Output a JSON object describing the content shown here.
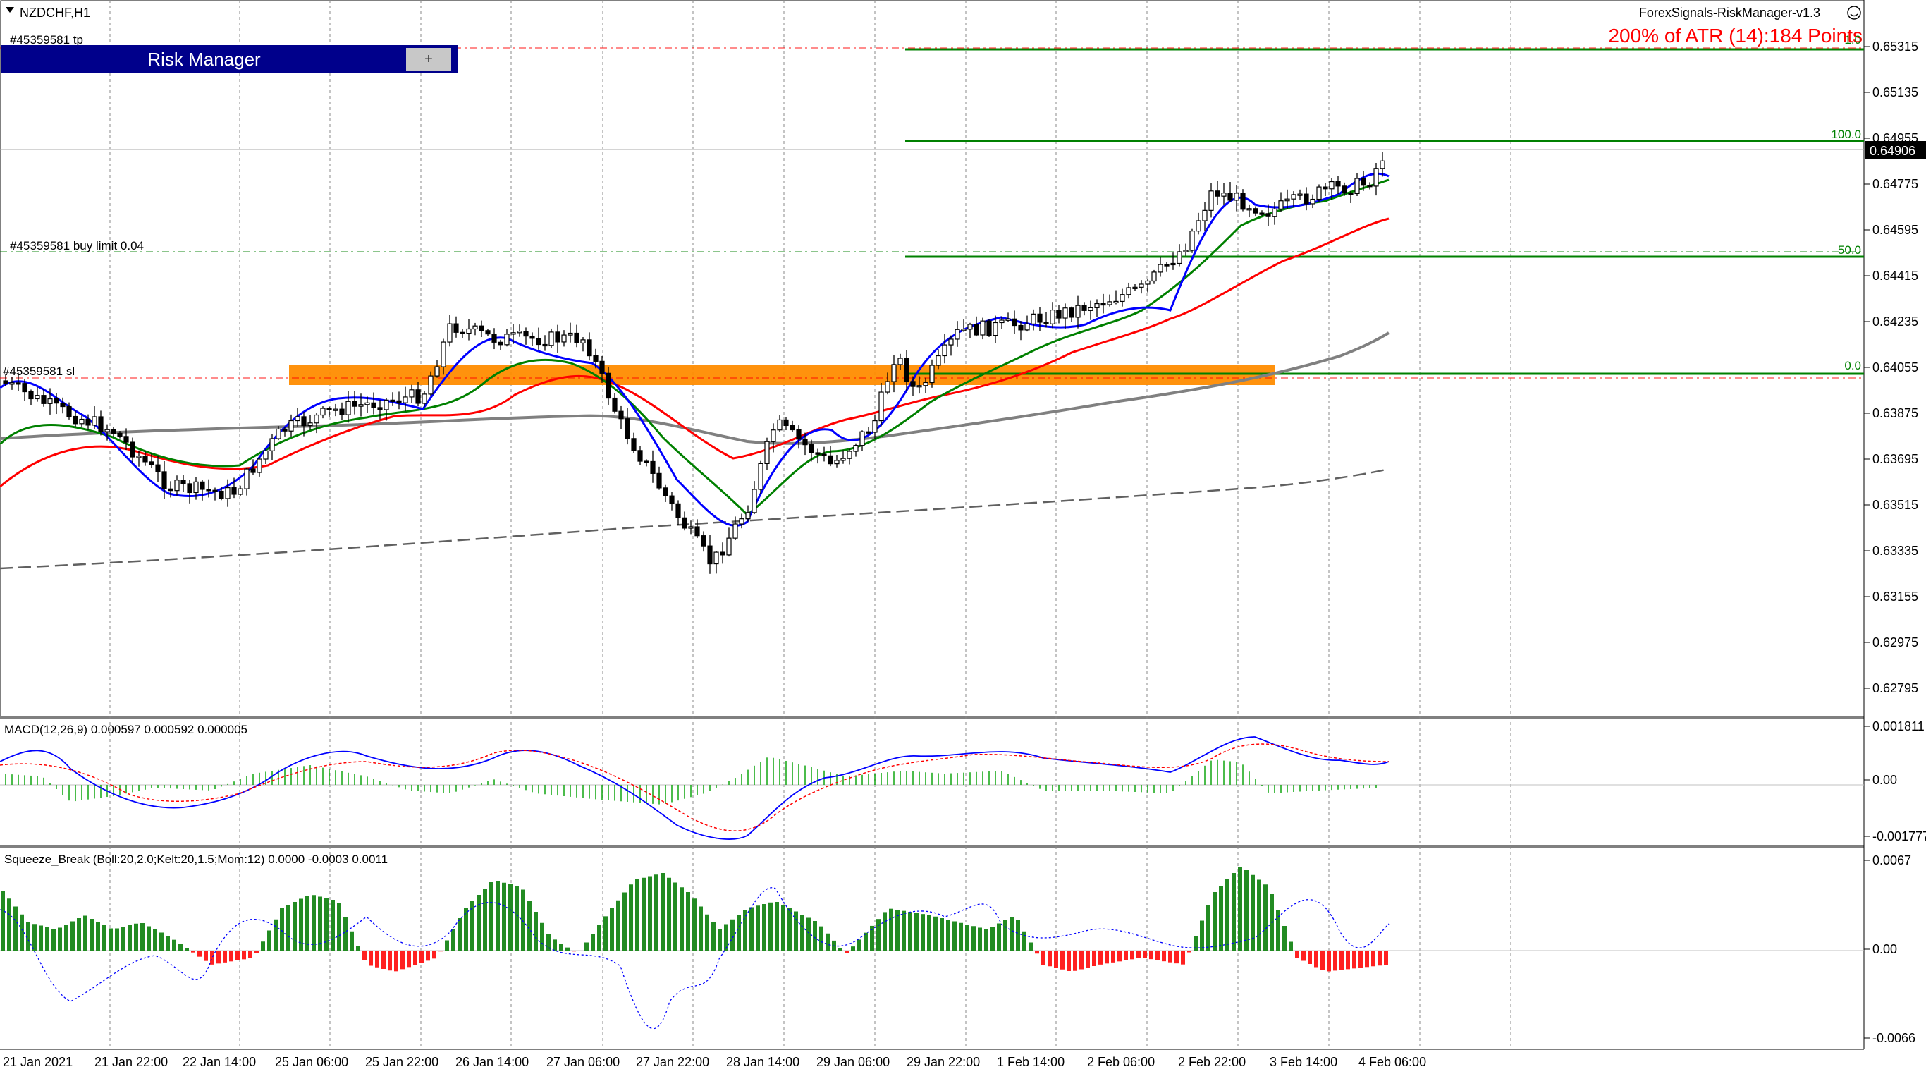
{
  "symbol_label": "NZDCHF,H1",
  "ea_label": "ForexSignals-RiskManager-v1.3",
  "atr_label": "200% of ATR (14):184 Points",
  "risk_manager": {
    "title": "Risk Manager",
    "button": "+"
  },
  "order_labels": {
    "tp": "#45359581 tp",
    "buy_limit": "#45359581 buy limit 0.04",
    "sl": "#45359581 sl"
  },
  "fib_levels": [
    "100.0",
    "50.0",
    "0.0"
  ],
  "fib_top_label": "1.0",
  "price_axis": {
    "ticks": [
      "0.65315",
      "0.65135",
      "0.64955",
      "0.64775",
      "0.64595",
      "0.64415",
      "0.64235",
      "0.64055",
      "0.63875",
      "0.63695",
      "0.63515",
      "0.63335",
      "0.63155",
      "0.62975",
      "0.62795"
    ],
    "current_price": "0.64906"
  },
  "macd": {
    "label": "MACD(12,26,9) 0.000597 0.000592 0.000005",
    "axis": [
      "0.001811",
      "0.00",
      "-0.001777"
    ]
  },
  "squeeze": {
    "label": "Squeeze_Break (Boll:20,2.0;Kelt:20,1.5;Mom:12) 0.0000 -0.0003 0.0011",
    "axis": [
      "0.0067",
      "0.00",
      "-0.0066"
    ]
  },
  "time_axis": [
    "21 Jan 2021",
    "21 Jan 22:00",
    "22 Jan 14:00",
    "25 Jan 06:00",
    "25 Jan 22:00",
    "26 Jan 14:00",
    "27 Jan 06:00",
    "27 Jan 22:00",
    "28 Jan 14:00",
    "29 Jan 06:00",
    "29 Jan 22:00",
    "1 Feb 14:00",
    "2 Feb 06:00",
    "2 Feb 22:00",
    "3 Feb 14:00",
    "4 Feb 06:00"
  ],
  "colors": {
    "bull": "#008000",
    "bear": "#ff0000",
    "ma_blue": "#0000ff",
    "ma_green": "#008000",
    "ma_red": "#ff0000",
    "ma_gray": "#808080",
    "zone": "#ff8c00",
    "atr_text": "#ff0000"
  }
}
